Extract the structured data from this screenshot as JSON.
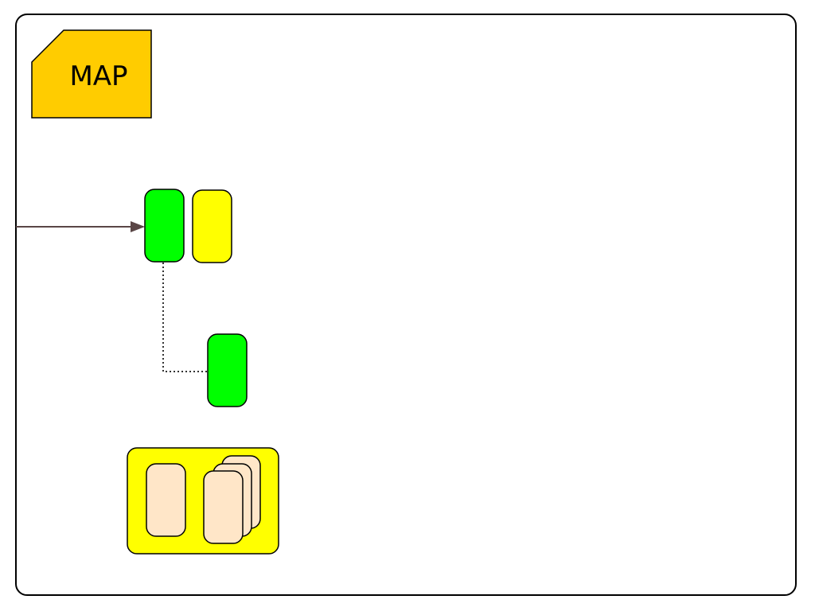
{
  "diagram": {
    "map_tag": {
      "label": "MAP",
      "color": "#FFCC00"
    },
    "colors": {
      "frame_stroke": "#000000",
      "arrow": "#5A4646",
      "green_node": "#00FF00",
      "yellow_node": "#FFFF00",
      "group_fill": "#FFFF00",
      "group_item_fill": "#FFE6C8",
      "dotted_link": "#333333"
    }
  }
}
